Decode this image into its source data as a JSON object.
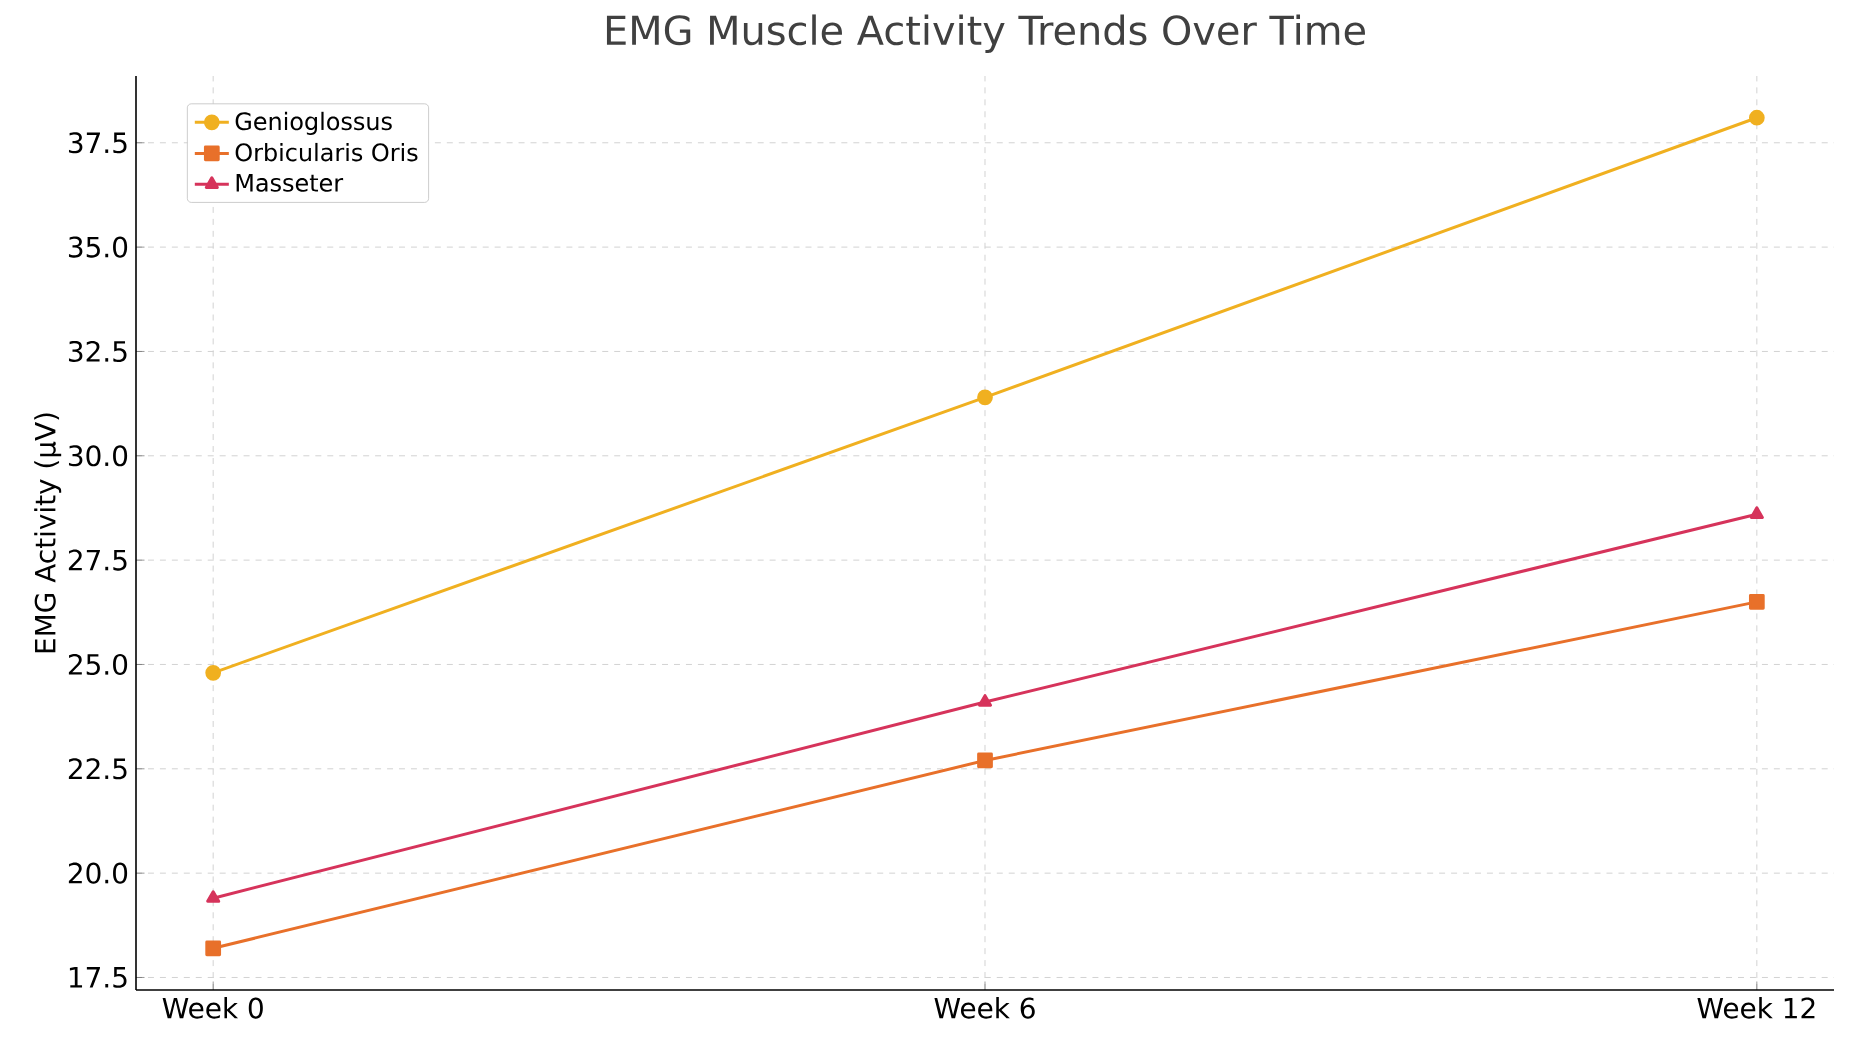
{
  "chart_data": {
    "type": "line",
    "title": "EMG Muscle Activity Trends Over Time",
    "ylabel": "EMG Activity (μV)",
    "categories": [
      "Week 0",
      "Week 6",
      "Week 12"
    ],
    "series": [
      {
        "name": "Genioglossus",
        "color": "#f0b020",
        "marker": "circle",
        "values": [
          24.8,
          31.4,
          38.1
        ]
      },
      {
        "name": "Orbicularis Oris",
        "color": "#e8702a",
        "marker": "square",
        "values": [
          18.2,
          22.7,
          26.5
        ]
      },
      {
        "name": "Masseter",
        "color": "#d6335b",
        "marker": "triangle",
        "values": [
          19.4,
          24.1,
          28.6
        ]
      }
    ],
    "ylim": [
      17.2,
      39.1
    ],
    "yticks": [
      17.5,
      {
        "value": 20,
        "label": "20.0"
      },
      22.5,
      {
        "value": 25,
        "label": "25.0"
      },
      27.5,
      {
        "value": 30,
        "label": "30.0"
      },
      32.5,
      {
        "value": 35,
        "label": "35.0"
      },
      37.5
    ],
    "grid": true,
    "legend": "top left",
    "line_style": "solid"
  }
}
